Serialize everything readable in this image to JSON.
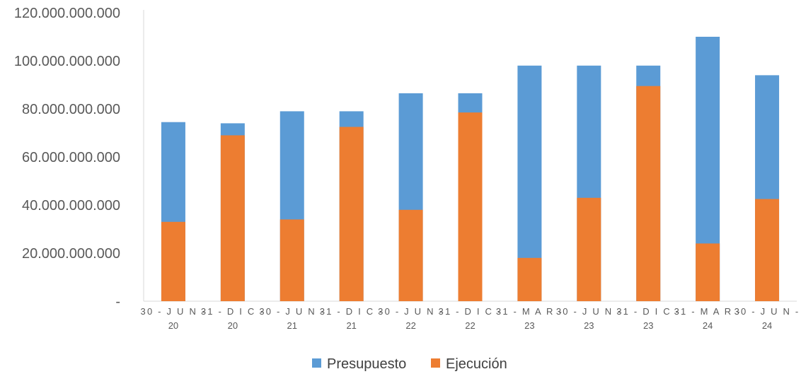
{
  "chart_data": {
    "type": "bar",
    "stacked": false,
    "overlapped": true,
    "categories": [
      [
        "30 - J U N -",
        "20"
      ],
      [
        "31 - D I C -",
        "20"
      ],
      [
        "30 - J U N -",
        "21"
      ],
      [
        "31 - D I C -",
        "21"
      ],
      [
        "30 - J U N -",
        "22"
      ],
      [
        "31 - D I C -",
        "22"
      ],
      [
        "31 - M A R -",
        "23"
      ],
      [
        "30 - J U N -",
        "23"
      ],
      [
        "31 - D I C -",
        "23"
      ],
      [
        "31 - M A R -",
        "24"
      ],
      [
        "30 - J U N -",
        "24"
      ]
    ],
    "series": [
      {
        "name": "Presupuesto",
        "color": "#5B9BD5",
        "values": [
          74500000000,
          74000000000,
          79000000000,
          79000000000,
          86500000000,
          86500000000,
          98000000000,
          98000000000,
          98000000000,
          110000000000,
          94000000000
        ]
      },
      {
        "name": "Ejecución",
        "color": "#ED7D31",
        "values": [
          33000000000,
          69000000000,
          34000000000,
          72500000000,
          38000000000,
          78500000000,
          18000000000,
          43000000000,
          89500000000,
          24000000000,
          42500000000
        ]
      }
    ],
    "ylim": [
      0,
      120000000000
    ],
    "yticks": [
      0,
      20000000000,
      40000000000,
      60000000000,
      80000000000,
      100000000000,
      120000000000
    ],
    "ytick_labels": [
      "-",
      "20.000.000.000",
      "40.000.000.000",
      "60.000.000.000",
      "80.000.000.000",
      "100.000.000.000",
      "120.000.000.000"
    ],
    "grid": false,
    "legend_position": "bottom"
  }
}
